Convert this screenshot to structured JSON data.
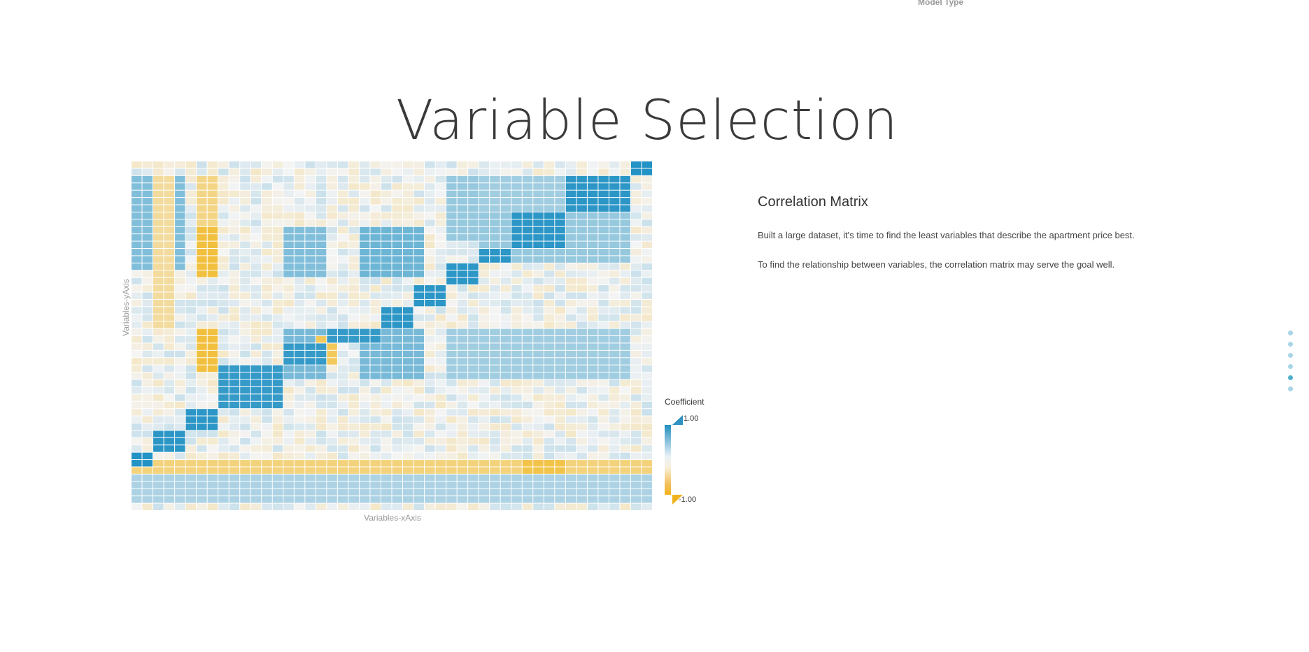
{
  "header": {
    "fragment_label": "Model Type"
  },
  "section": {
    "title": "Variable Selection"
  },
  "info": {
    "heading": "Correlation Matrix",
    "paragraphs": [
      "Built a large dataset, it's time to find the least variables that describe the apartment price best.",
      "To find the relationship between variables, the correlation matrix may serve the goal well."
    ]
  },
  "chart_data": {
    "type": "heatmap",
    "title": "",
    "xlabel": "Variables-xAxis",
    "ylabel": "Variables-yAxis",
    "legend_title": "Coefficient",
    "legend_max_label": "1.00",
    "legend_min_label": "-1.00",
    "value_range": [
      -1,
      1
    ],
    "colors": {
      "positive": "#1a8ec2",
      "neutral": "#f4f4f4",
      "negative": "#f2b310"
    },
    "grid_size": [
      48,
      32
    ],
    "diagonal_blocks": [
      {
        "x": [
          46,
          47
        ],
        "y": [
          0,
          1
        ],
        "value": 0.95
      },
      {
        "x": [
          40,
          45
        ],
        "y": [
          2,
          6
        ],
        "value": 0.9
      },
      {
        "x": [
          35,
          39
        ],
        "y": [
          7,
          11
        ],
        "value": 0.9
      },
      {
        "x": [
          32,
          34
        ],
        "y": [
          12,
          13
        ],
        "value": 0.9
      },
      {
        "x": [
          29,
          31
        ],
        "y": [
          14,
          16
        ],
        "value": 0.9
      },
      {
        "x": [
          26,
          28
        ],
        "y": [
          17,
          19
        ],
        "value": 0.9
      },
      {
        "x": [
          23,
          25
        ],
        "y": [
          20,
          22
        ],
        "value": 0.9
      },
      {
        "x": [
          18,
          22
        ],
        "y": [
          23,
          24
        ],
        "value": 0.85
      },
      {
        "x": [
          14,
          17
        ],
        "y": [
          25,
          27
        ],
        "value": 0.85
      },
      {
        "x": [
          8,
          13
        ],
        "y": [
          28,
          33
        ],
        "value": 0.85
      },
      {
        "x": [
          5,
          7
        ],
        "y": [
          34,
          36
        ],
        "value": 0.9
      },
      {
        "x": [
          2,
          4
        ],
        "y": [
          37,
          39
        ],
        "value": 0.9
      },
      {
        "x": [
          0,
          1
        ],
        "y": [
          40,
          41
        ],
        "value": 0.95
      }
    ],
    "blue_regions": [
      {
        "x": [
          40,
          45
        ],
        "y": [
          7,
          13
        ],
        "value": 0.45
      },
      {
        "x": [
          32,
          45
        ],
        "y": [
          7,
          13
        ],
        "value": 0.35
      },
      {
        "x": [
          14,
          17
        ],
        "y": [
          9,
          15
        ],
        "value": 0.45
      },
      {
        "x": [
          21,
          26
        ],
        "y": [
          9,
          15
        ],
        "value": 0.55
      },
      {
        "x": [
          29,
          31
        ],
        "y": [
          2,
          10
        ],
        "value": 0.35
      },
      {
        "x": [
          32,
          39
        ],
        "y": [
          2,
          6
        ],
        "value": 0.3
      },
      {
        "x": [
          14,
          17
        ],
        "y": [
          23,
          29
        ],
        "value": 0.5
      },
      {
        "x": [
          21,
          26
        ],
        "y": [
          23,
          29
        ],
        "value": 0.5
      },
      {
        "x": [
          35,
          39
        ],
        "y": [
          23,
          29
        ],
        "value": 0.5
      },
      {
        "x": [
          32,
          45
        ],
        "y": [
          23,
          29
        ],
        "value": 0.3
      },
      {
        "x": [
          29,
          31
        ],
        "y": [
          23,
          29
        ],
        "value": 0.3
      },
      {
        "x": [
          0,
          1
        ],
        "y": [
          2,
          14
        ],
        "value": 0.45
      },
      {
        "x": [
          4,
          4
        ],
        "y": [
          2,
          14
        ],
        "value": 0.45
      },
      {
        "x": [
          0,
          47
        ],
        "y": [
          43,
          46
        ],
        "value": 0.25
      }
    ],
    "yellow_regions": [
      {
        "x": [
          6,
          7
        ],
        "y": [
          9,
          15
        ],
        "value": -0.75
      },
      {
        "x": [
          6,
          7
        ],
        "y": [
          23,
          28
        ],
        "value": -0.75
      },
      {
        "x": [
          2,
          3
        ],
        "y": [
          2,
          22
        ],
        "value": -0.3
      },
      {
        "x": [
          6,
          7
        ],
        "y": [
          2,
          8
        ],
        "value": -0.4
      },
      {
        "x": [
          0,
          1
        ],
        "y": [
          40,
          41
        ],
        "value": -0.1
      },
      {
        "x": [
          0,
          47
        ],
        "y": [
          41,
          42
        ],
        "value": -0.45
      },
      {
        "x": [
          36,
          39
        ],
        "y": [
          41,
          42
        ],
        "value": -0.7
      },
      {
        "x": [
          17,
          18
        ],
        "y": [
          24,
          27
        ],
        "value": -0.6
      }
    ]
  }
}
